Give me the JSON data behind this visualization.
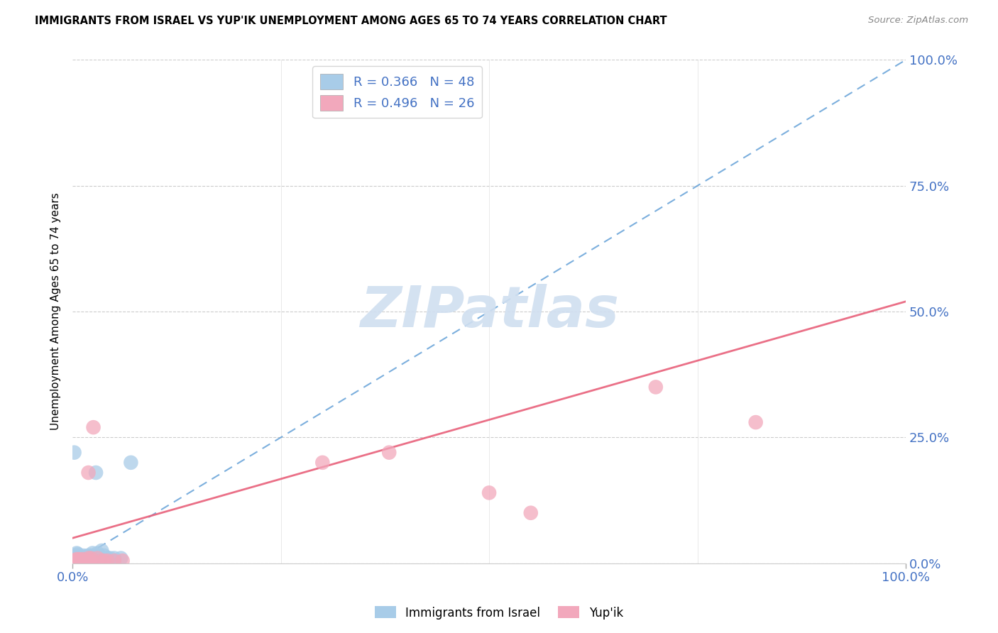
{
  "title": "IMMIGRANTS FROM ISRAEL VS YUP'IK UNEMPLOYMENT AMONG AGES 65 TO 74 YEARS CORRELATION CHART",
  "source": "Source: ZipAtlas.com",
  "ylabel_label": "Unemployment Among Ages 65 to 74 years",
  "legend_label1": "Immigrants from Israel",
  "legend_label2": "Yup'ik",
  "R1": 0.366,
  "N1": 48,
  "R2": 0.496,
  "N2": 26,
  "color_blue": "#a8cce8",
  "color_pink": "#f2a8bc",
  "color_blue_dark": "#5b9bd5",
  "color_pink_dark": "#e8607a",
  "color_axis_label": "#4472c4",
  "watermark_color": "#d0dff0",
  "blue_dots_x": [
    0.001,
    0.001,
    0.002,
    0.002,
    0.003,
    0.003,
    0.003,
    0.004,
    0.004,
    0.004,
    0.005,
    0.005,
    0.005,
    0.006,
    0.006,
    0.006,
    0.007,
    0.007,
    0.008,
    0.008,
    0.008,
    0.009,
    0.009,
    0.01,
    0.01,
    0.011,
    0.012,
    0.013,
    0.015,
    0.016,
    0.018,
    0.02,
    0.021,
    0.022,
    0.024,
    0.025,
    0.027,
    0.028,
    0.03,
    0.032,
    0.035,
    0.038,
    0.042,
    0.045,
    0.05,
    0.058,
    0.07,
    0.002
  ],
  "blue_dots_y": [
    0.005,
    0.01,
    0.005,
    0.015,
    0.002,
    0.008,
    0.015,
    0.002,
    0.008,
    0.015,
    0.005,
    0.01,
    0.02,
    0.005,
    0.01,
    0.018,
    0.005,
    0.012,
    0.005,
    0.01,
    0.015,
    0.005,
    0.012,
    0.005,
    0.012,
    0.01,
    0.01,
    0.015,
    0.01,
    0.012,
    0.015,
    0.01,
    0.015,
    0.015,
    0.02,
    0.01,
    0.015,
    0.18,
    0.02,
    0.015,
    0.025,
    0.015,
    0.01,
    0.01,
    0.01,
    0.01,
    0.2,
    0.22
  ],
  "pink_dots_x": [
    0.002,
    0.003,
    0.005,
    0.007,
    0.008,
    0.01,
    0.012,
    0.015,
    0.018,
    0.019,
    0.02,
    0.022,
    0.025,
    0.03,
    0.035,
    0.038,
    0.042,
    0.05,
    0.06,
    0.019,
    0.3,
    0.38,
    0.5,
    0.55,
    0.7,
    0.82
  ],
  "pink_dots_y": [
    0.005,
    0.005,
    0.008,
    0.005,
    0.008,
    0.005,
    0.008,
    0.005,
    0.005,
    0.01,
    0.005,
    0.01,
    0.27,
    0.01,
    0.005,
    0.005,
    0.005,
    0.005,
    0.005,
    0.18,
    0.2,
    0.22,
    0.14,
    0.1,
    0.35,
    0.28
  ],
  "blue_line_x": [
    0.0,
    1.0
  ],
  "blue_line_y_start": 0.0,
  "blue_line_y_end": 1.0,
  "pink_line_x": [
    0.0,
    1.0
  ],
  "pink_line_y_start": 0.05,
  "pink_line_y_end": 0.52,
  "xlim": [
    0.0,
    1.0
  ],
  "ylim": [
    0.0,
    1.0
  ],
  "yticks": [
    0.0,
    0.25,
    0.5,
    0.75,
    1.0
  ],
  "ytick_labels": [
    "0.0%",
    "25.0%",
    "50.0%",
    "75.0%",
    "100.0%"
  ],
  "xtick_labels": [
    "0.0%",
    "100.0%"
  ]
}
